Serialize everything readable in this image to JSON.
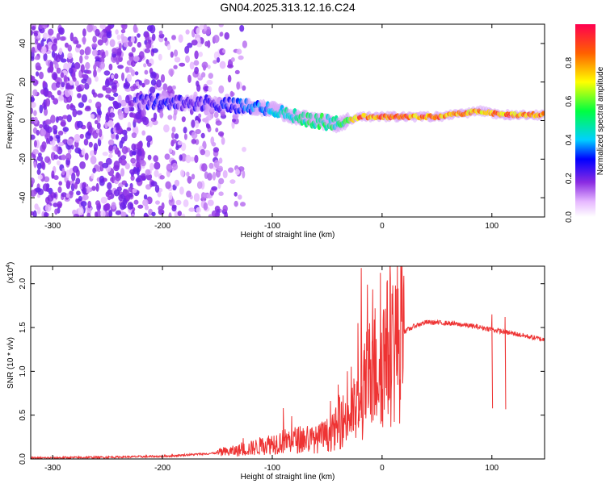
{
  "title": "GN04.2025.313.12.16.C24",
  "chart_data": [
    {
      "type": "heatmap",
      "xlabel": "Height of straight line (km)",
      "ylabel": "Frequency (Hz)",
      "xlim": [
        -320,
        148
      ],
      "ylim": [
        -50,
        50
      ],
      "xticks": [
        -300,
        -200,
        -100,
        0,
        100
      ],
      "yticks": [
        -40,
        -20,
        0,
        20,
        40
      ],
      "colorbar": {
        "label": "Normalized spectral amplitude",
        "range": [
          0,
          1
        ],
        "ticks": [
          "0.0",
          "0.2",
          "0.4",
          "0.6",
          "0.8"
        ],
        "tick_values": [
          0,
          0.2,
          0.4,
          0.6,
          0.8
        ]
      },
      "ridge": {
        "x": [
          -220,
          -200,
          -180,
          -160,
          -140,
          -120,
          -100,
          -80,
          -60,
          -40,
          -20,
          0,
          50,
          90,
          110,
          148
        ],
        "freq": [
          10,
          10,
          9,
          9,
          8,
          7,
          6,
          2,
          0,
          -2,
          2,
          2,
          2,
          5,
          3,
          3
        ],
        "amp": [
          0.25,
          0.3,
          0.25,
          0.25,
          0.3,
          0.35,
          0.4,
          0.5,
          0.55,
          0.5,
          0.85,
          0.85,
          0.85,
          0.8,
          0.85,
          0.85
        ]
      }
    },
    {
      "type": "line",
      "xlabel": "Height of straight line (km)",
      "ylabel": "SNR (10 * v/v)",
      "exponent_label": "(x10",
      "exponent_sup": "4",
      "exponent_close": ")",
      "xlim": [
        -320,
        148
      ],
      "ylim": [
        0,
        2.2
      ],
      "xticks": [
        -300,
        -200,
        -100,
        0,
        100
      ],
      "yticks": [
        "0.0",
        "0.5",
        "1.0",
        "1.5",
        "2.0"
      ],
      "ytick_values": [
        0,
        0.5,
        1.0,
        1.5,
        2.0
      ],
      "color": "#ee3333",
      "series": [
        {
          "x": [
            -320,
            -250,
            -200,
            -160,
            -140,
            -120,
            -100,
            -80,
            -60,
            -45,
            -35,
            -25,
            -20,
            -15,
            -10,
            0,
            10,
            20,
            30,
            40,
            60,
            80,
            100,
            110,
            120,
            148
          ],
          "y": [
            0.01,
            0.02,
            0.03,
            0.06,
            0.08,
            0.12,
            0.18,
            0.22,
            0.22,
            0.3,
            0.45,
            0.55,
            0.5,
            0.85,
            1.0,
            1.15,
            1.3,
            1.45,
            1.52,
            1.56,
            1.55,
            1.52,
            1.48,
            1.45,
            1.43,
            1.36
          ]
        }
      ],
      "spikes": [
        {
          "x": -19,
          "y": 2.18
        },
        {
          "x": -22,
          "y": 1.55
        },
        {
          "x": 100,
          "y": 1.65
        },
        {
          "x": 112,
          "y": 1.62
        },
        {
          "x": -40,
          "y": 0.85
        },
        {
          "x": -90,
          "y": 0.58
        }
      ]
    }
  ]
}
